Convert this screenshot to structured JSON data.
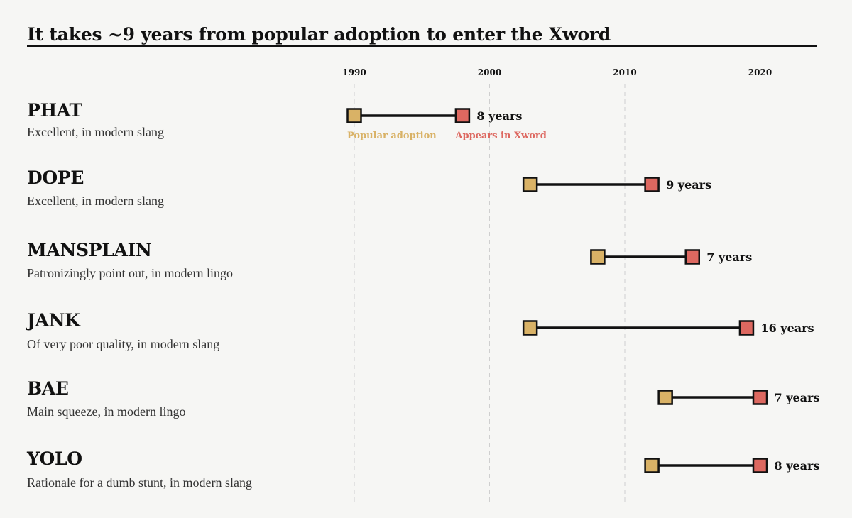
{
  "title": "It takes ~9 years from popular adoption to enter the Xword",
  "colors": {
    "background": "#f6f6f4",
    "popular_adoption": "#d9b266",
    "appears_in_xword": "#dd6860",
    "connector": "#111111",
    "gridline": "#cfcfcf"
  },
  "legend": {
    "popular_adoption": "Popular adoption",
    "appears_in_xword": "Appears in Xword"
  },
  "chart_data": {
    "type": "dumbbell",
    "title": "It takes ~9 years from popular adoption to enter the Xword",
    "x_ticks": [
      1990,
      2000,
      2010,
      2020
    ],
    "xlim": [
      1988,
      2025
    ],
    "grid": true,
    "legend_placement": "under first row",
    "series": [
      {
        "name": "Popular adoption",
        "color": "#d9b266"
      },
      {
        "name": "Appears in Xword",
        "color": "#dd6860"
      }
    ],
    "rows": [
      {
        "word": "PHAT",
        "definition": "Excellent, in modern slang",
        "adoption": 1990,
        "xword": 1998,
        "gap_label": "8 years"
      },
      {
        "word": "DOPE",
        "definition": "Excellent, in modern slang",
        "adoption": 2003,
        "xword": 2012,
        "gap_label": "9 years"
      },
      {
        "word": "MANSPLAIN",
        "definition": "Patronizingly point out, in modern lingo",
        "adoption": 2008,
        "xword": 2015,
        "gap_label": "7 years"
      },
      {
        "word": "JANK",
        "definition": "Of very poor quality, in modern slang",
        "adoption": 2003,
        "xword": 2019,
        "gap_label": "16 years"
      },
      {
        "word": "BAE",
        "definition": "Main squeeze, in modern lingo",
        "adoption": 2013,
        "xword": 2020,
        "gap_label": "7 years"
      },
      {
        "word": "YOLO",
        "definition": "Rationale for a dumb stunt, in modern slang",
        "adoption": 2012,
        "xword": 2020,
        "gap_label": "8 years"
      }
    ]
  }
}
